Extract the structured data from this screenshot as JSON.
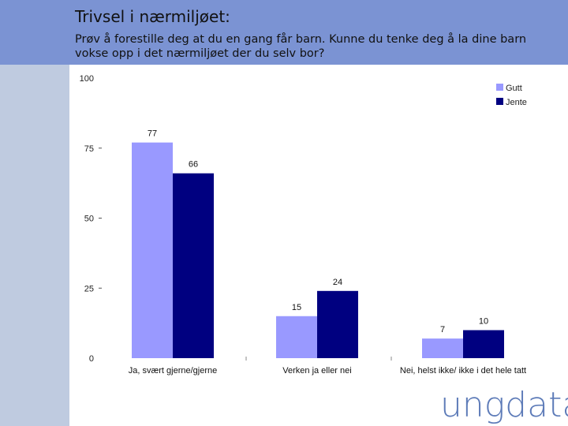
{
  "slide": {
    "title": "Trivsel i nærmiljøet:",
    "subtitle": "Prøv å forestille deg at du en gang får barn. Kunne du tenke deg å la dine barn vokse opp i det nærmiljøet der du selv bor?"
  },
  "logo": {
    "text": "ungdata"
  },
  "colors": {
    "header": "#7b93d3",
    "sidebar": "#bfcbe0",
    "gutt": "#9999ff",
    "jente": "#000080"
  },
  "chart_data": {
    "type": "bar",
    "title": "",
    "xlabel": "",
    "ylabel": "",
    "ylim": [
      0,
      100
    ],
    "yticks": [
      0,
      25,
      50,
      75,
      100
    ],
    "categories": [
      "Ja, svært gjerne/gjerne",
      "Verken ja eller nei",
      "Nei, helst ikke/ ikke i det hele tatt"
    ],
    "series": [
      {
        "name": "Gutt",
        "color": "#9999ff",
        "values": [
          77,
          15,
          7
        ]
      },
      {
        "name": "Jente",
        "color": "#000080",
        "values": [
          66,
          24,
          10
        ]
      }
    ],
    "legend": "top-right",
    "grid": false
  }
}
